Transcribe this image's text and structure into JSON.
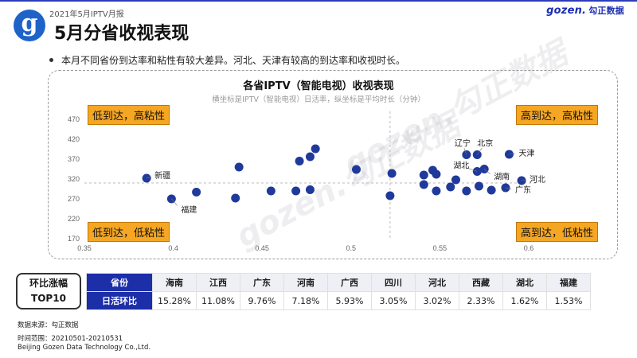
{
  "header": {
    "report_tag": "2021年5月IPTV月报",
    "brand_en": "gozen.",
    "brand_cn": "勾正数据",
    "logo_letter": "g",
    "page_title": "5月分省收视表现"
  },
  "bullet_text": "本月不同省份到达率和粘性有较大差异。河北、天津有较高的到达率和收视时长。",
  "watermark": "gozen.勾正数据",
  "quadrants": {
    "top_left": "低到达，高粘性",
    "top_right": "高到达，高粘性",
    "bottom_left": "低到达，低粘性",
    "bottom_right": "高到达，低粘性"
  },
  "chart_data": {
    "type": "scatter",
    "title": "各省IPTV（智能电视）收视表现",
    "subtitle": "横坐标是IPTV（智能电视）日活率，纵坐标是平均时长（分钟）",
    "xlim": [
      0.35,
      0.6
    ],
    "ylim": [
      170,
      470
    ],
    "xticks": [
      "0.35",
      "0.4",
      "0.45",
      "0.5",
      "0.55",
      "0.6"
    ],
    "yticks": [
      "170",
      "220",
      "270",
      "320",
      "370",
      "420",
      "470"
    ],
    "x_divider": 0.522,
    "y_divider": 310,
    "point_color": "#1f3a9a",
    "points": [
      {
        "x": 0.385,
        "y": 322,
        "label": "新疆"
      },
      {
        "x": 0.399,
        "y": 270,
        "label": "福建"
      },
      {
        "x": 0.413,
        "y": 287
      },
      {
        "x": 0.435,
        "y": 272
      },
      {
        "x": 0.437,
        "y": 350
      },
      {
        "x": 0.455,
        "y": 290
      },
      {
        "x": 0.469,
        "y": 290
      },
      {
        "x": 0.471,
        "y": 365
      },
      {
        "x": 0.477,
        "y": 376
      },
      {
        "x": 0.477,
        "y": 293
      },
      {
        "x": 0.48,
        "y": 396
      },
      {
        "x": 0.503,
        "y": 344
      },
      {
        "x": 0.522,
        "y": 278
      },
      {
        "x": 0.523,
        "y": 334
      },
      {
        "x": 0.541,
        "y": 330
      },
      {
        "x": 0.541,
        "y": 306
      },
      {
        "x": 0.546,
        "y": 342
      },
      {
        "x": 0.548,
        "y": 290
      },
      {
        "x": 0.548,
        "y": 332
      },
      {
        "x": 0.556,
        "y": 300
      },
      {
        "x": 0.559,
        "y": 318
      },
      {
        "x": 0.565,
        "y": 381,
        "label": "辽宁"
      },
      {
        "x": 0.565,
        "y": 290
      },
      {
        "x": 0.571,
        "y": 381,
        "label": "北京"
      },
      {
        "x": 0.571,
        "y": 339,
        "label": "湖北"
      },
      {
        "x": 0.572,
        "y": 302
      },
      {
        "x": 0.579,
        "y": 292
      },
      {
        "x": 0.575,
        "y": 345,
        "label": "湖南"
      },
      {
        "x": 0.587,
        "y": 298,
        "label": "广东"
      },
      {
        "x": 0.589,
        "y": 382,
        "label": "天津"
      },
      {
        "x": 0.596,
        "y": 316,
        "label": "河北"
      }
    ]
  },
  "table": {
    "title_line1": "环比涨幅",
    "title_line2": "TOP10",
    "row_headers": [
      "省份",
      "日活环比"
    ],
    "provinces": [
      "海南",
      "江西",
      "广东",
      "河南",
      "广西",
      "四川",
      "河北",
      "西藏",
      "湖北",
      "福建"
    ],
    "values": [
      "15.28%",
      "11.08%",
      "9.76%",
      "7.18%",
      "5.93%",
      "3.05%",
      "3.02%",
      "2.33%",
      "1.62%",
      "1.53%"
    ]
  },
  "footer": {
    "source": "数据来源：勾正数据",
    "period": "时间范围：20210501-20210531",
    "company": "Beijing Gozen Data Technology Co.,Ltd."
  }
}
